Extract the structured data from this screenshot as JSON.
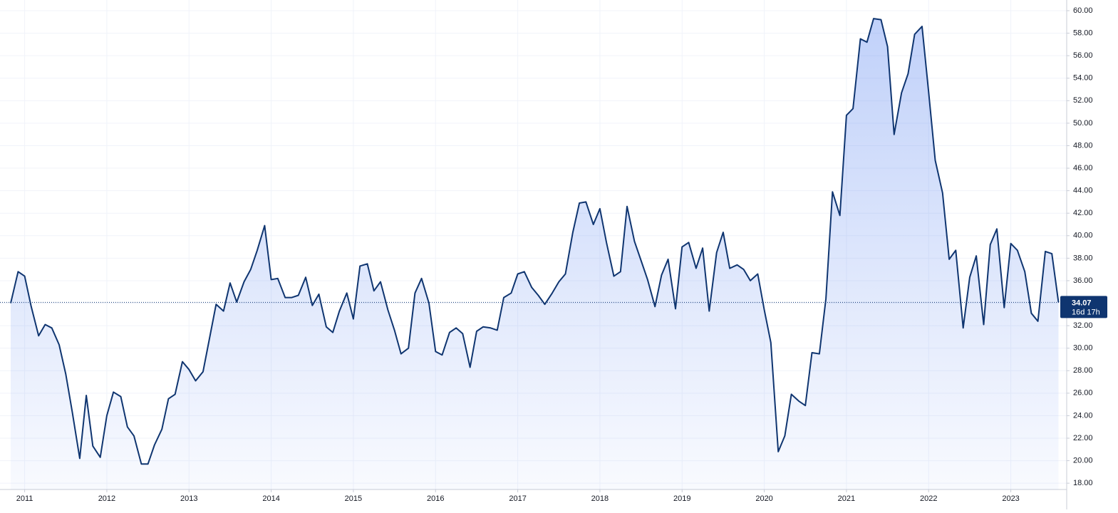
{
  "chart_data": {
    "type": "area",
    "line_color": "#0f3570",
    "fill_color": "#5b86f0",
    "grid": true,
    "countdown": "16d 17h",
    "x": [
      2010.83,
      2010.92,
      2011.0,
      2011.08,
      2011.17,
      2011.25,
      2011.33,
      2011.42,
      2011.5,
      2011.58,
      2011.67,
      2011.75,
      2011.83,
      2011.92,
      2012.0,
      2012.08,
      2012.17,
      2012.25,
      2012.33,
      2012.42,
      2012.5,
      2012.58,
      2012.67,
      2012.75,
      2012.83,
      2012.92,
      2013.0,
      2013.08,
      2013.17,
      2013.25,
      2013.33,
      2013.42,
      2013.5,
      2013.58,
      2013.67,
      2013.75,
      2013.83,
      2013.92,
      2014.0,
      2014.08,
      2014.17,
      2014.25,
      2014.33,
      2014.42,
      2014.5,
      2014.58,
      2014.67,
      2014.75,
      2014.83,
      2014.92,
      2015.0,
      2015.08,
      2015.17,
      2015.25,
      2015.33,
      2015.42,
      2015.5,
      2015.58,
      2015.67,
      2015.75,
      2015.83,
      2015.92,
      2016.0,
      2016.08,
      2016.17,
      2016.25,
      2016.33,
      2016.42,
      2016.5,
      2016.58,
      2016.67,
      2016.75,
      2016.83,
      2016.92,
      2017.0,
      2017.08,
      2017.17,
      2017.25,
      2017.33,
      2017.42,
      2017.5,
      2017.58,
      2017.67,
      2017.75,
      2017.83,
      2017.92,
      2018.0,
      2018.08,
      2018.17,
      2018.25,
      2018.33,
      2018.42,
      2018.5,
      2018.58,
      2018.67,
      2018.75,
      2018.83,
      2018.92,
      2019.0,
      2019.08,
      2019.17,
      2019.25,
      2019.33,
      2019.42,
      2019.5,
      2019.58,
      2019.67,
      2019.75,
      2019.83,
      2019.92,
      2020.0,
      2020.08,
      2020.17,
      2020.25,
      2020.33,
      2020.42,
      2020.5,
      2020.58,
      2020.67,
      2020.75,
      2020.83,
      2020.92,
      2021.0,
      2021.08,
      2021.17,
      2021.25,
      2021.33,
      2021.42,
      2021.5,
      2021.58,
      2021.67,
      2021.75,
      2021.83,
      2021.92,
      2022.0,
      2022.08,
      2022.17,
      2022.25,
      2022.33,
      2022.42,
      2022.5,
      2022.58,
      2022.67,
      2022.75,
      2022.83,
      2022.92,
      2023.0,
      2023.08,
      2023.17,
      2023.25,
      2023.33,
      2023.42,
      2023.5,
      2023.58
    ],
    "series": [
      {
        "values": [
          34.0,
          36.8,
          36.4,
          33.7,
          31.1,
          32.1,
          31.8,
          30.3,
          27.7,
          24.3,
          20.2,
          25.8,
          21.3,
          20.3,
          24.0,
          26.1,
          25.7,
          23.0,
          22.2,
          19.7,
          19.7,
          21.4,
          22.8,
          25.5,
          25.9,
          28.8,
          28.1,
          27.1,
          27.9,
          30.9,
          33.9,
          33.3,
          35.8,
          34.1,
          35.9,
          37.0,
          38.7,
          40.9,
          36.1,
          36.2,
          34.5,
          34.5,
          34.7,
          36.3,
          33.8,
          34.8,
          31.9,
          31.4,
          33.3,
          34.9,
          32.6,
          37.3,
          37.5,
          35.1,
          35.9,
          33.4,
          31.6,
          29.5,
          30.0,
          34.9,
          36.2,
          34.0,
          29.7,
          29.4,
          31.4,
          31.8,
          31.3,
          28.3,
          31.5,
          31.9,
          31.8,
          31.6,
          34.5,
          34.9,
          36.6,
          36.8,
          35.4,
          34.7,
          33.9,
          34.9,
          35.9,
          36.6,
          40.3,
          42.9,
          43.0,
          41.0,
          42.4,
          39.4,
          36.4,
          36.8,
          42.6,
          39.5,
          37.8,
          36.1,
          33.7,
          36.5,
          37.9,
          33.5,
          39.0,
          39.4,
          37.1,
          38.9,
          33.3,
          38.5,
          40.3,
          37.1,
          37.4,
          37.0,
          36.0,
          36.6,
          33.4,
          30.5,
          20.8,
          22.2,
          25.9,
          25.3,
          24.9,
          29.6,
          29.5,
          34.4,
          43.9,
          41.8,
          50.7,
          51.3,
          57.5,
          57.2,
          59.3,
          59.2,
          56.8,
          49.0,
          52.7,
          54.4,
          57.9,
          58.6,
          52.8,
          46.7,
          43.8,
          37.9,
          38.7,
          31.8,
          36.3,
          38.2,
          32.1,
          39.2,
          40.6,
          33.6,
          39.3,
          38.7,
          36.8,
          33.1,
          32.4,
          38.6,
          38.4,
          34.07
        ]
      }
    ],
    "xlim": [
      2010.7,
      2023.68
    ],
    "xticks": [
      2011,
      2012,
      2013,
      2014,
      2015,
      2016,
      2017,
      2018,
      2019,
      2020,
      2021,
      2022,
      2023
    ],
    "ylim": [
      17.44,
      60.95
    ],
    "yticks": [
      {
        "value": 18,
        "label": "18.00"
      },
      {
        "value": 20,
        "label": "20.00"
      },
      {
        "value": 22,
        "label": "22.00"
      },
      {
        "value": 24,
        "label": "24.00"
      },
      {
        "value": 26,
        "label": "26.00"
      },
      {
        "value": 28,
        "label": "28.00"
      },
      {
        "value": 30,
        "label": "30.00"
      },
      {
        "value": 32,
        "label": "32.00"
      },
      {
        "value": 34,
        "label": "34.00"
      },
      {
        "value": 36,
        "label": "36.00"
      },
      {
        "value": 38,
        "label": "38.00"
      },
      {
        "value": 40,
        "label": "40.00"
      },
      {
        "value": 42,
        "label": "42.00"
      },
      {
        "value": 44,
        "label": "44.00"
      },
      {
        "value": 46,
        "label": "46.00"
      },
      {
        "value": 48,
        "label": "48.00"
      },
      {
        "value": 50,
        "label": "50.00"
      },
      {
        "value": 52,
        "label": "52.00"
      },
      {
        "value": 54,
        "label": "54.00"
      },
      {
        "value": 56,
        "label": "56.00"
      },
      {
        "value": 58,
        "label": "58.00"
      },
      {
        "value": 60,
        "label": "60.00"
      }
    ]
  }
}
